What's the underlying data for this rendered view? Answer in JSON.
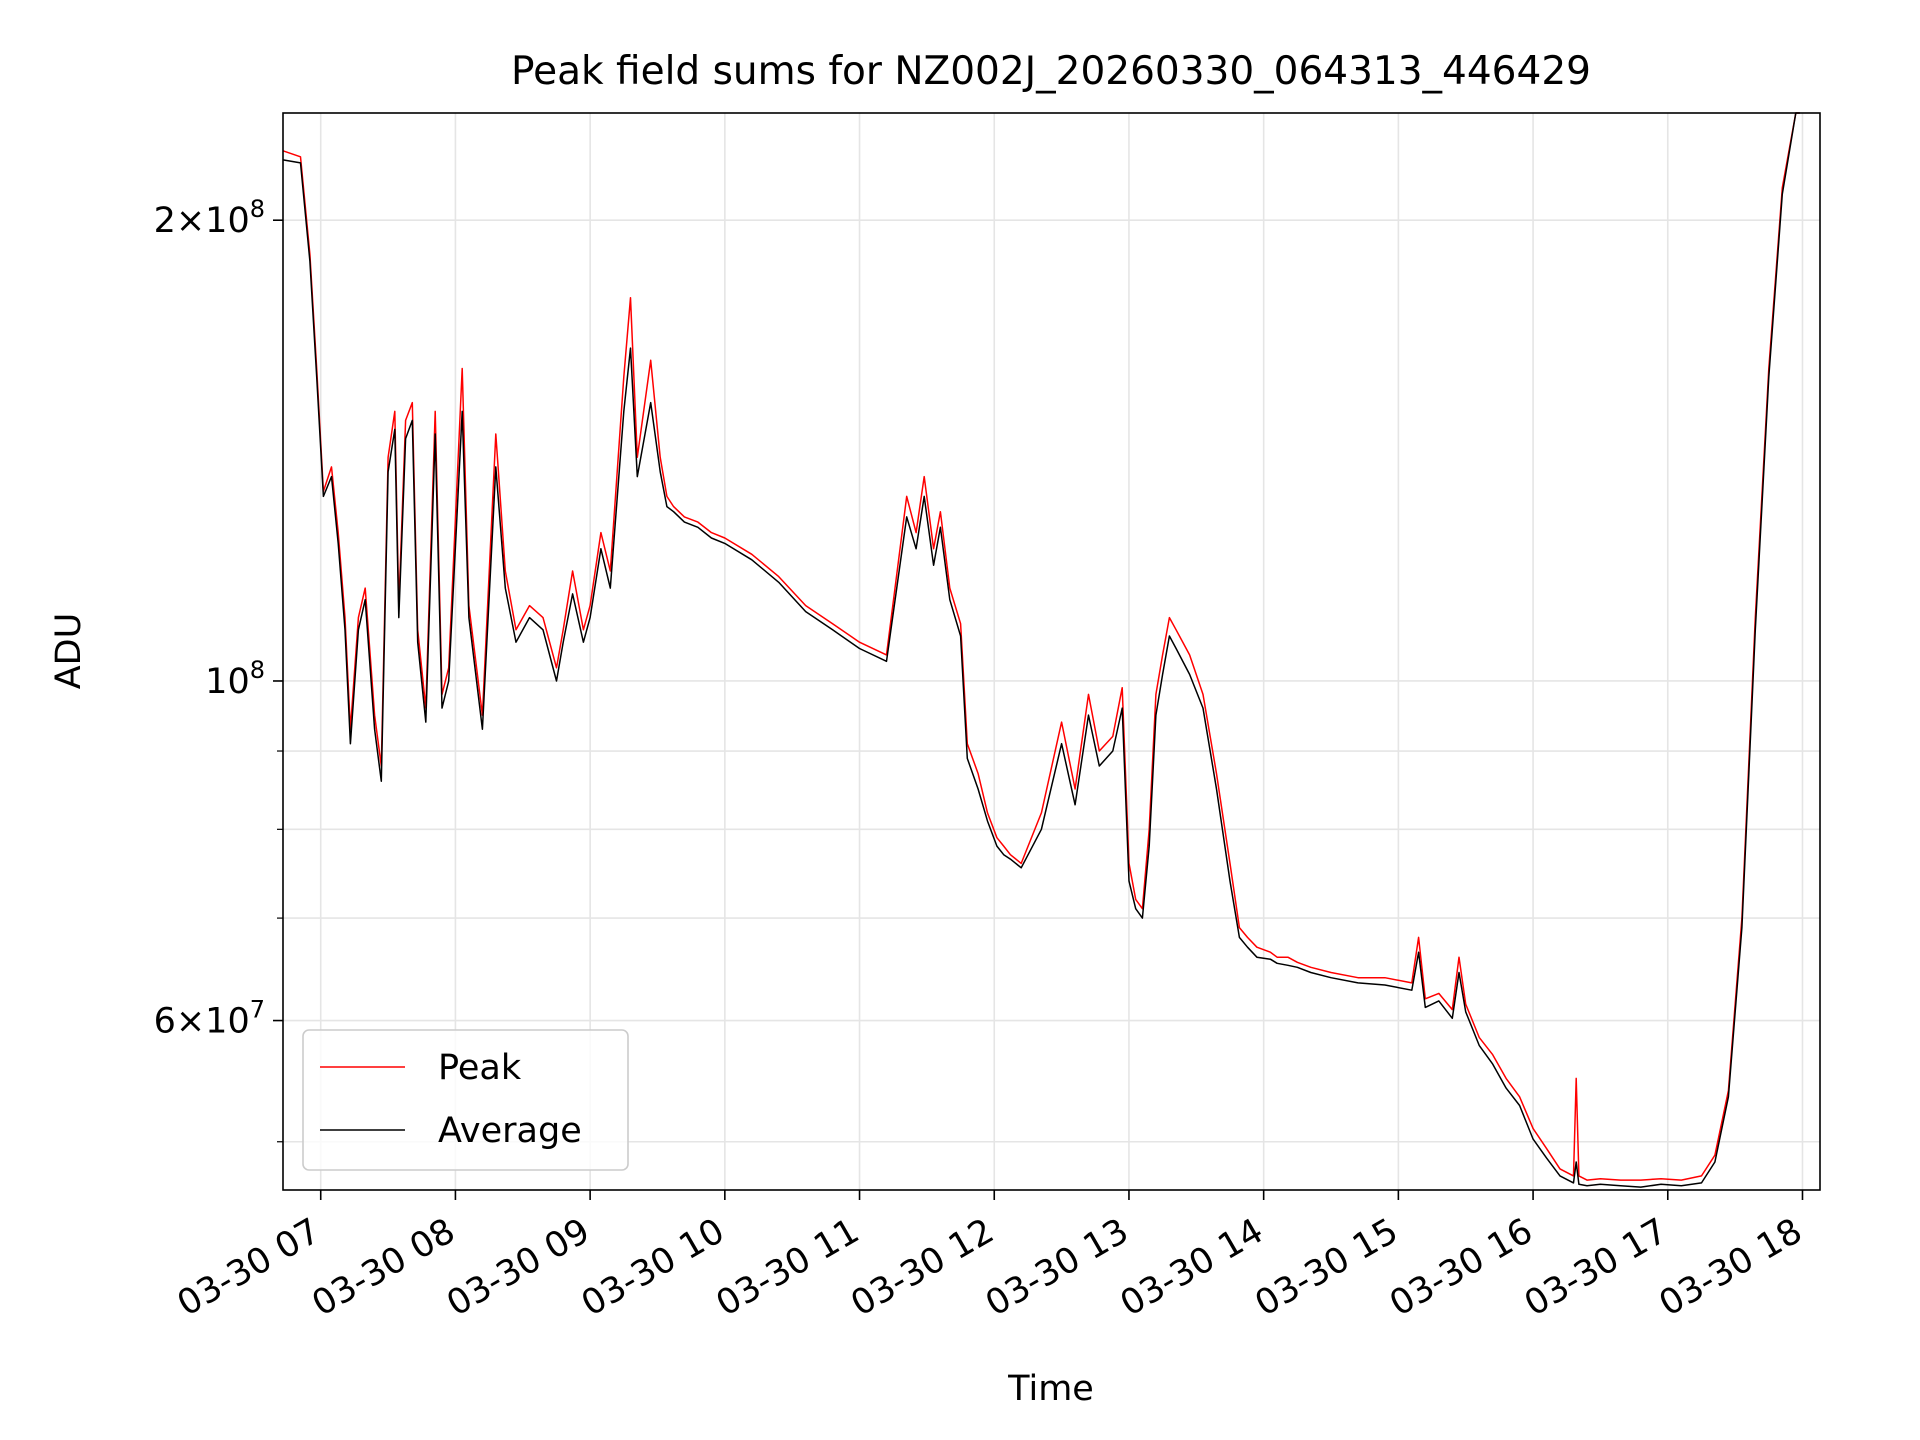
{
  "chart_data": {
    "type": "line",
    "title": "Peak field sums for NZ002J_20260330_064313_446429",
    "xlabel": "Time",
    "ylabel": "ADU",
    "yscale": "log",
    "grid": true,
    "legend_position": "lower-left",
    "xlim_hours": [
      6.72,
      18.13
    ],
    "ylim": [
      46500000,
      235000000
    ],
    "x_ticks": [
      {
        "hour": 7,
        "label": "03-30 07"
      },
      {
        "hour": 8,
        "label": "03-30 08"
      },
      {
        "hour": 9,
        "label": "03-30 09"
      },
      {
        "hour": 10,
        "label": "03-30 10"
      },
      {
        "hour": 11,
        "label": "03-30 11"
      },
      {
        "hour": 12,
        "label": "03-30 12"
      },
      {
        "hour": 13,
        "label": "03-30 13"
      },
      {
        "hour": 14,
        "label": "03-30 14"
      },
      {
        "hour": 15,
        "label": "03-30 15"
      },
      {
        "hour": 16,
        "label": "03-30 16"
      },
      {
        "hour": 17,
        "label": "03-30 17"
      },
      {
        "hour": 18,
        "label": "03-30 18"
      }
    ],
    "y_major_ticks": [
      {
        "value": 60000000,
        "mantissa": "6",
        "exponent": "7"
      },
      {
        "value": 100000000,
        "mantissa": "",
        "exponent": "8"
      },
      {
        "value": 200000000,
        "mantissa": "2",
        "exponent": "8"
      }
    ],
    "y_minor_ticks": [
      50000000,
      70000000,
      80000000,
      90000000
    ],
    "times_sign": "×",
    "base_label": "10",
    "series": [
      {
        "name": "Peak",
        "color": "#ff0000",
        "x": [
          6.72,
          6.85,
          6.92,
          6.97,
          7.02,
          7.08,
          7.13,
          7.18,
          7.22,
          7.28,
          7.33,
          7.4,
          7.45,
          7.5,
          7.55,
          7.58,
          7.63,
          7.68,
          7.72,
          7.78,
          7.85,
          7.9,
          7.95,
          8.05,
          8.1,
          8.2,
          8.3,
          8.37,
          8.45,
          8.55,
          8.65,
          8.75,
          8.8,
          8.87,
          8.95,
          9.0,
          9.08,
          9.15,
          9.25,
          9.3,
          9.35,
          9.45,
          9.52,
          9.57,
          9.62,
          9.7,
          9.8,
          9.9,
          10.0,
          10.2,
          10.4,
          10.6,
          10.8,
          11.0,
          11.2,
          11.35,
          11.42,
          11.48,
          11.55,
          11.6,
          11.67,
          11.75,
          11.8,
          11.88,
          11.95,
          12.02,
          12.07,
          12.12,
          12.2,
          12.35,
          12.5,
          12.6,
          12.7,
          12.78,
          12.88,
          12.95,
          13.0,
          13.05,
          13.1,
          13.15,
          13.2,
          13.25,
          13.3,
          13.35,
          13.45,
          13.55,
          13.65,
          13.75,
          13.82,
          13.88,
          13.95,
          14.05,
          14.1,
          14.18,
          14.25,
          14.35,
          14.5,
          14.7,
          14.9,
          15.1,
          15.15,
          15.2,
          15.3,
          15.4,
          15.45,
          15.5,
          15.6,
          15.7,
          15.8,
          15.9,
          16.0,
          16.1,
          16.2,
          16.3,
          16.32,
          16.34,
          16.4,
          16.5,
          16.65,
          16.8,
          16.95,
          17.1,
          17.25,
          17.35,
          17.45,
          17.55,
          17.65,
          17.75,
          17.85,
          17.95,
          17.98
        ],
        "y": [
          222000000,
          220000000,
          190000000,
          160000000,
          133000000,
          138000000,
          125000000,
          110000000,
          93000000,
          110000000,
          115000000,
          95000000,
          88000000,
          140000000,
          150000000,
          112000000,
          148000000,
          152000000,
          108000000,
          96000000,
          150000000,
          98000000,
          102000000,
          160000000,
          112000000,
          95000000,
          145000000,
          118000000,
          108000000,
          112000000,
          110000000,
          102000000,
          108000000,
          118000000,
          108000000,
          112000000,
          125000000,
          118000000,
          158000000,
          178000000,
          140000000,
          162000000,
          140000000,
          132000000,
          130000000,
          128000000,
          127000000,
          125000000,
          124000000,
          121000000,
          117000000,
          112000000,
          109000000,
          106000000,
          104000000,
          132000000,
          125000000,
          136000000,
          122000000,
          129000000,
          115000000,
          109000000,
          91000000,
          87000000,
          82000000,
          79000000,
          78000000,
          77000000,
          76000000,
          82000000,
          94000000,
          85000000,
          98000000,
          90000000,
          92000000,
          99000000,
          76000000,
          72000000,
          71000000,
          80000000,
          98000000,
          104000000,
          110000000,
          108000000,
          104000000,
          98000000,
          87000000,
          76000000,
          69000000,
          68000000,
          67000000,
          66500000,
          66000000,
          66000000,
          65500000,
          65000000,
          64500000,
          64000000,
          64000000,
          63500000,
          68000000,
          62000000,
          62500000,
          61000000,
          66000000,
          61500000,
          58500000,
          57000000,
          55000000,
          53500000,
          51000000,
          49500000,
          48000000,
          47500000,
          55000000,
          47500000,
          47200000,
          47300000,
          47200000,
          47200000,
          47300000,
          47200000,
          47500000,
          49000000,
          54000000,
          70000000,
          110000000,
          160000000,
          210000000,
          235000000,
          235000000
        ]
      },
      {
        "name": "Average",
        "color": "#000000",
        "x": [
          6.72,
          6.85,
          6.92,
          6.97,
          7.02,
          7.08,
          7.13,
          7.18,
          7.22,
          7.28,
          7.33,
          7.4,
          7.45,
          7.5,
          7.55,
          7.58,
          7.63,
          7.68,
          7.72,
          7.78,
          7.85,
          7.9,
          7.95,
          8.05,
          8.1,
          8.2,
          8.3,
          8.37,
          8.45,
          8.55,
          8.65,
          8.75,
          8.8,
          8.87,
          8.95,
          9.0,
          9.08,
          9.15,
          9.25,
          9.3,
          9.35,
          9.45,
          9.52,
          9.57,
          9.62,
          9.7,
          9.8,
          9.9,
          10.0,
          10.2,
          10.4,
          10.6,
          10.8,
          11.0,
          11.2,
          11.35,
          11.42,
          11.48,
          11.55,
          11.6,
          11.67,
          11.75,
          11.8,
          11.88,
          11.95,
          12.02,
          12.07,
          12.12,
          12.2,
          12.35,
          12.5,
          12.6,
          12.7,
          12.78,
          12.88,
          12.95,
          13.0,
          13.05,
          13.1,
          13.15,
          13.2,
          13.25,
          13.3,
          13.35,
          13.45,
          13.55,
          13.65,
          13.75,
          13.82,
          13.88,
          13.95,
          14.05,
          14.1,
          14.18,
          14.25,
          14.35,
          14.5,
          14.7,
          14.9,
          15.1,
          15.15,
          15.2,
          15.3,
          15.4,
          15.45,
          15.5,
          15.6,
          15.7,
          15.8,
          15.9,
          16.0,
          16.1,
          16.2,
          16.3,
          16.32,
          16.34,
          16.4,
          16.5,
          16.65,
          16.8,
          16.95,
          17.1,
          17.25,
          17.35,
          17.45,
          17.55,
          17.65,
          17.75,
          17.85,
          17.95,
          17.98
        ],
        "y": [
          219000000,
          218000000,
          188000000,
          158000000,
          132000000,
          136000000,
          123000000,
          108000000,
          91000000,
          108000000,
          113000000,
          93000000,
          86000000,
          137000000,
          146000000,
          110000000,
          144000000,
          148000000,
          106000000,
          94000000,
          145000000,
          96000000,
          100000000,
          150000000,
          110000000,
          93000000,
          138000000,
          115000000,
          106000000,
          110000000,
          108000000,
          100000000,
          106000000,
          114000000,
          106000000,
          110000000,
          122000000,
          115000000,
          150000000,
          165000000,
          136000000,
          152000000,
          137000000,
          130000000,
          129000000,
          127000000,
          126000000,
          124000000,
          123000000,
          120000000,
          116000000,
          111000000,
          108000000,
          105000000,
          103000000,
          128000000,
          122000000,
          132000000,
          119000000,
          126000000,
          113000000,
          107000000,
          89000000,
          85000000,
          81000000,
          78000000,
          77000000,
          76500000,
          75500000,
          80000000,
          91000000,
          83000000,
          95000000,
          88000000,
          90000000,
          96000000,
          74000000,
          71000000,
          70000000,
          78000000,
          95000000,
          101000000,
          107000000,
          105000000,
          101000000,
          96000000,
          85000000,
          74000000,
          68000000,
          67000000,
          66000000,
          65800000,
          65400000,
          65200000,
          65000000,
          64500000,
          64000000,
          63500000,
          63300000,
          62800000,
          66500000,
          61200000,
          61800000,
          60200000,
          64500000,
          60800000,
          57800000,
          56200000,
          54200000,
          52800000,
          50200000,
          48800000,
          47500000,
          47000000,
          48500000,
          46900000,
          46800000,
          46900000,
          46800000,
          46700000,
          46900000,
          46800000,
          47000000,
          48500000,
          53500000,
          69000000,
          108000000,
          158000000,
          208000000,
          235000000,
          235000000
        ]
      }
    ]
  }
}
